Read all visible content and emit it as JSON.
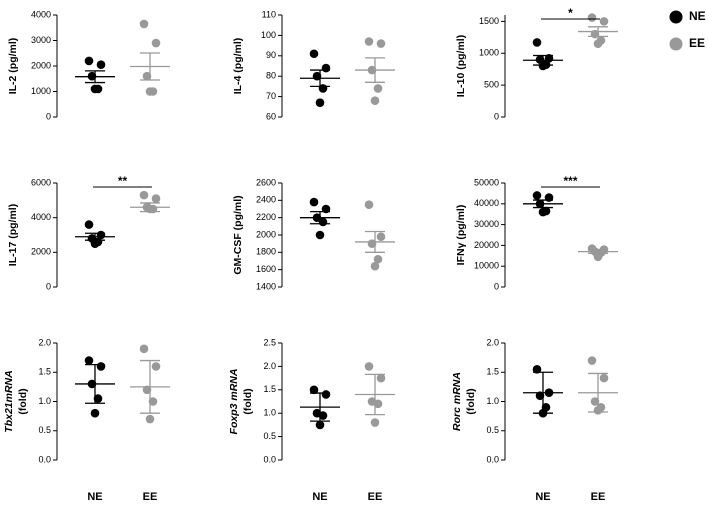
{
  "legend": {
    "position": "right",
    "entries": [
      {
        "name": "NE",
        "color": "#000000"
      },
      {
        "name": "EE",
        "color": "#999999"
      }
    ]
  },
  "chart_data": [
    {
      "type": "scatter",
      "ylabel": [
        "IL-2 (pg/ml)"
      ],
      "ylim": [
        0,
        4000
      ],
      "yticks": [
        0,
        1000,
        2000,
        3000,
        4000
      ],
      "series": [
        {
          "values": [
            2200,
            2050,
            1600,
            1100,
            1100
          ],
          "mean": 1580,
          "error": 230
        },
        {
          "values": [
            3650,
            2900,
            1600,
            1000,
            1000
          ],
          "mean": 1980,
          "error": 530
        }
      ]
    },
    {
      "type": "scatter",
      "ylabel": [
        "IL-4 (pg/ml)"
      ],
      "ylim": [
        60,
        110
      ],
      "yticks": [
        60,
        70,
        80,
        90,
        100,
        110
      ],
      "series": [
        {
          "values": [
            91,
            84,
            80,
            74,
            67
          ],
          "mean": 79,
          "error": 4
        },
        {
          "values": [
            97,
            96,
            83,
            74,
            68
          ],
          "mean": 83,
          "error": 6
        }
      ]
    },
    {
      "type": "scatter",
      "ylabel": [
        "IL-10 (pg/ml)"
      ],
      "ylim": [
        0,
        1600
      ],
      "yticks": [
        0,
        500,
        1000,
        1500
      ],
      "annotation": "*",
      "series": [
        {
          "values": [
            1170,
            920,
            900,
            820,
            800
          ],
          "mean": 890,
          "error": 75
        },
        {
          "values": [
            1560,
            1500,
            1300,
            1200,
            1150
          ],
          "mean": 1340,
          "error": 75
        }
      ]
    },
    {
      "type": "scatter",
      "ylabel": [
        "IL-17 (pg/ml)"
      ],
      "ylim": [
        0,
        6000
      ],
      "yticks": [
        0,
        2000,
        4000,
        6000
      ],
      "annotation": "**",
      "series": [
        {
          "values": [
            3600,
            3000,
            2800,
            2600,
            2500
          ],
          "mean": 2900,
          "error": 200
        },
        {
          "values": [
            5300,
            5100,
            4600,
            4500,
            4500
          ],
          "mean": 4600,
          "error": 250
        }
      ]
    },
    {
      "type": "scatter",
      "ylabel": [
        "GM-CSF (pg/ml)"
      ],
      "ylim": [
        1400,
        2600
      ],
      "yticks": [
        1400,
        1600,
        1800,
        2000,
        2200,
        2400,
        2600
      ],
      "series": [
        {
          "values": [
            2380,
            2300,
            2200,
            2150,
            2000
          ],
          "mean": 2200,
          "error": 70
        },
        {
          "values": [
            2350,
            1980,
            1900,
            1720,
            1640
          ],
          "mean": 1920,
          "error": 120
        }
      ]
    },
    {
      "type": "scatter",
      "ylabel": [
        "IFNγ (pg/ml)"
      ],
      "ylim": [
        0,
        50000
      ],
      "yticks": [
        0,
        10000,
        20000,
        30000,
        40000,
        50000
      ],
      "annotation": "***",
      "series": [
        {
          "values": [
            44000,
            43000,
            40000,
            36500,
            36000
          ],
          "mean": 40000,
          "error": 1800
        },
        {
          "values": [
            18500,
            18000,
            17000,
            16500,
            14500
          ],
          "mean": 17000,
          "error": 800
        }
      ]
    },
    {
      "type": "scatter",
      "ylabel": [
        "Tbx21mRNA",
        "(fold)"
      ],
      "ylabel_italic": true,
      "categories": [
        "NE",
        "EE"
      ],
      "ylim": [
        0,
        2
      ],
      "yticks": [
        {
          "value": 0,
          "label": "0.0"
        },
        0.5,
        {
          "value": 1,
          "label": "1.0"
        },
        1.5,
        {
          "value": 2,
          "label": "2.0"
        }
      ],
      "series": [
        {
          "values": [
            1.7,
            1.6,
            1.3,
            1.05,
            0.8
          ],
          "mean": 1.3,
          "error": 0.33
        },
        {
          "values": [
            1.9,
            1.6,
            1.2,
            1.0,
            0.7
          ],
          "mean": 1.25,
          "error": 0.45
        }
      ]
    },
    {
      "type": "scatter",
      "ylabel": [
        "Foxp3 mRNA",
        "(fold)"
      ],
      "ylabel_italic": true,
      "categories": [
        "NE",
        "EE"
      ],
      "ylim": [
        0,
        2.5
      ],
      "yticks": [
        {
          "value": 0,
          "label": "0.0"
        },
        0.5,
        {
          "value": 1,
          "label": "1.0"
        },
        1.5,
        {
          "value": 2,
          "label": "2.0"
        },
        2.5
      ],
      "series": [
        {
          "values": [
            1.5,
            1.4,
            1.0,
            0.95,
            0.75
          ],
          "mean": 1.13,
          "error": 0.3
        },
        {
          "values": [
            2.0,
            1.75,
            1.25,
            1.2,
            0.8
          ],
          "mean": 1.4,
          "error": 0.43
        }
      ]
    },
    {
      "type": "scatter",
      "ylabel": [
        "Rorc mRNA",
        "(fold)"
      ],
      "ylabel_italic": true,
      "categories": [
        "NE",
        "EE"
      ],
      "ylim": [
        0,
        2
      ],
      "yticks": [
        {
          "value": 0,
          "label": "0.0"
        },
        0.5,
        {
          "value": 1,
          "label": "1.0"
        },
        1.5,
        {
          "value": 2,
          "label": "2.0"
        }
      ],
      "series": [
        {
          "values": [
            1.55,
            1.15,
            1.1,
            0.9,
            0.8
          ],
          "mean": 1.15,
          "error": 0.35
        },
        {
          "values": [
            1.7,
            1.4,
            1.0,
            0.9,
            0.85
          ],
          "mean": 1.15,
          "error": 0.33
        }
      ]
    }
  ]
}
